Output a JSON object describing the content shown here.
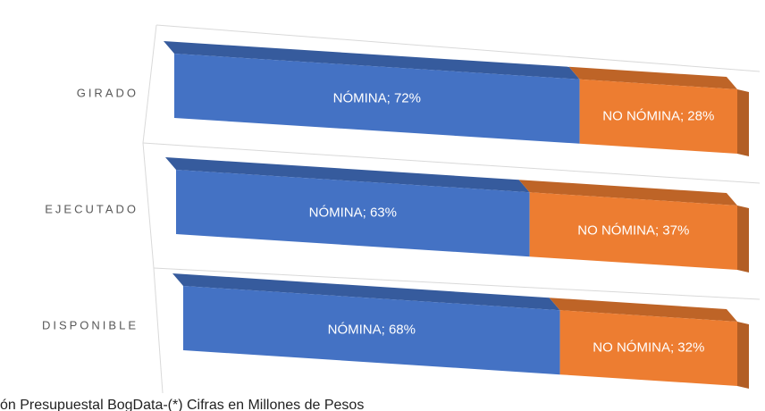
{
  "chart_data": {
    "type": "bar3d_stacked",
    "categories": [
      "GIRADO",
      "EJECUTADO",
      "DISPONIBLE"
    ],
    "series": [
      {
        "name": "NÓMINA",
        "color": "#4472c4",
        "values": [
          72,
          63,
          68
        ],
        "value_labels": [
          "NÓMINA; 72%",
          "NÓMINA; 63%",
          "NÓMINA; 68%"
        ]
      },
      {
        "name": "NO NÓMINA",
        "color": "#ed7d31",
        "values": [
          28,
          37,
          32
        ],
        "value_labels": [
          "NO NÓMINA; 28%",
          "NO NÓMINA; 37%",
          "NO NÓMINA; 32%"
        ]
      }
    ],
    "xlim": [
      0,
      100
    ],
    "caption": "ón Presupuestal BogData-(*) Cifras en Millones de Pesos"
  }
}
